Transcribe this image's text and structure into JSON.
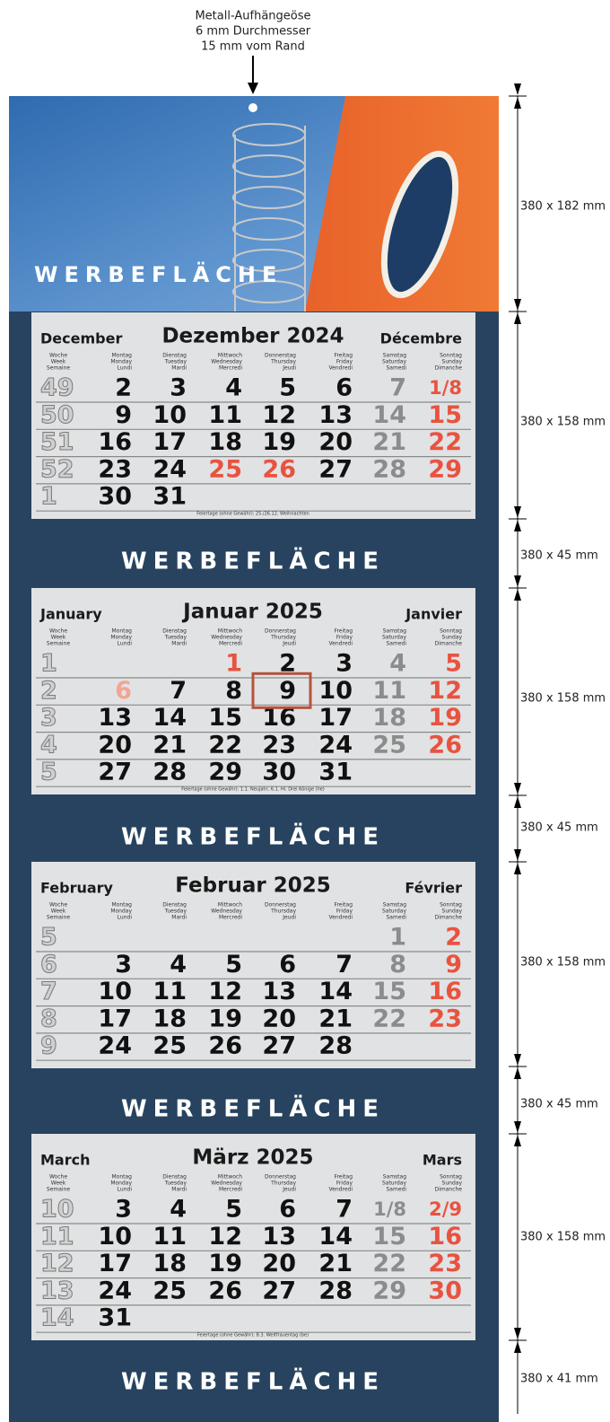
{
  "hanger_note": [
    "Metall-Aufhängeöse",
    "6 mm Durchmesser",
    "15 mm vom Rand"
  ],
  "ad_label": "WERBEFLÄCHE",
  "dimensions": [
    "380 x 182 mm",
    "380 x 158 mm",
    "380 x 45 mm",
    "380 x 158 mm",
    "380 x 45 mm",
    "380 x 158 mm",
    "380 x 45 mm",
    "380 x 158 mm",
    "380 x 41 mm"
  ],
  "weekday_headers": [
    [
      "Woche",
      "Week",
      "Semaine"
    ],
    [
      "Montag",
      "Monday",
      "Lundi"
    ],
    [
      "Dienstag",
      "Tuesday",
      "Mardi"
    ],
    [
      "Mittwoch",
      "Wednesday",
      "Mercredi"
    ],
    [
      "Donnerstag",
      "Thursday",
      "Jeudi"
    ],
    [
      "Freitag",
      "Friday",
      "Vendredi"
    ],
    [
      "Samstag",
      "Saturday",
      "Samedi"
    ],
    [
      "Sonntag",
      "Sunday",
      "Dimanche"
    ]
  ],
  "months": [
    {
      "english": "December",
      "german": "Dezember 2024",
      "french": "Décembre",
      "rows": [
        {
          "week": "49",
          "days": [
            "2",
            "3",
            "4",
            "5",
            "6",
            "7",
            "1/8"
          ]
        },
        {
          "week": "50",
          "days": [
            "9",
            "10",
            "11",
            "12",
            "13",
            "14",
            "15"
          ]
        },
        {
          "week": "51",
          "days": [
            "16",
            "17",
            "18",
            "19",
            "20",
            "21",
            "22"
          ]
        },
        {
          "week": "52",
          "days": [
            "23",
            "24",
            "25",
            "26",
            "27",
            "28",
            "29"
          ]
        },
        {
          "week": "1",
          "days": [
            "30",
            "31",
            null,
            null,
            null,
            null,
            null
          ]
        }
      ],
      "footnote": "Feiertage (ohne Gewähr): 25./26.12. Weihnachten"
    },
    {
      "english": "January",
      "german": "Januar 2025",
      "french": "Janvier",
      "rows": [
        {
          "week": "1",
          "days": [
            null,
            null,
            "1",
            "2",
            "3",
            "4",
            "5"
          ]
        },
        {
          "week": "2",
          "days": [
            "6",
            "7",
            "8",
            "9",
            "10",
            "11",
            "12"
          ]
        },
        {
          "week": "3",
          "days": [
            "13",
            "14",
            "15",
            "16",
            "17",
            "18",
            "19"
          ]
        },
        {
          "week": "4",
          "days": [
            "20",
            "21",
            "22",
            "23",
            "24",
            "25",
            "26"
          ]
        },
        {
          "week": "5",
          "days": [
            "27",
            "28",
            "29",
            "30",
            "31",
            null,
            null
          ]
        }
      ],
      "footnote": "Feiertage (ohne Gewähr): 1.1. Neujahr, 6.1. Hl. Drei Könige (he)"
    },
    {
      "english": "February",
      "german": "Februar 2025",
      "french": "Février",
      "rows": [
        {
          "week": "5",
          "days": [
            null,
            null,
            null,
            null,
            null,
            "1",
            "2"
          ]
        },
        {
          "week": "6",
          "days": [
            "3",
            "4",
            "5",
            "6",
            "7",
            "8",
            "9"
          ]
        },
        {
          "week": "7",
          "days": [
            "10",
            "11",
            "12",
            "13",
            "14",
            "15",
            "16"
          ]
        },
        {
          "week": "8",
          "days": [
            "17",
            "18",
            "19",
            "20",
            "21",
            "22",
            "23"
          ]
        },
        {
          "week": "9",
          "days": [
            "24",
            "25",
            "26",
            "27",
            "28",
            null,
            null
          ]
        }
      ]
    },
    {
      "english": "March",
      "german": "März 2025",
      "french": "Mars",
      "rows": [
        {
          "week": "10",
          "days": [
            "3",
            "4",
            "5",
            "6",
            "7",
            "1/8",
            "2/9"
          ]
        },
        {
          "week": "11",
          "days": [
            "10",
            "11",
            "12",
            "13",
            "14",
            "15",
            "16"
          ]
        },
        {
          "week": "12",
          "days": [
            "17",
            "18",
            "19",
            "20",
            "21",
            "22",
            "23"
          ]
        },
        {
          "week": "13",
          "days": [
            "24",
            "25",
            "26",
            "27",
            "28",
            "29",
            "30"
          ]
        },
        {
          "week": "14",
          "days": [
            "31",
            null,
            null,
            null,
            null,
            null,
            null
          ]
        }
      ],
      "footnote": "Feiertage (ohne Gewähr): 8.3. Weltfrauentag (be)"
    }
  ]
}
